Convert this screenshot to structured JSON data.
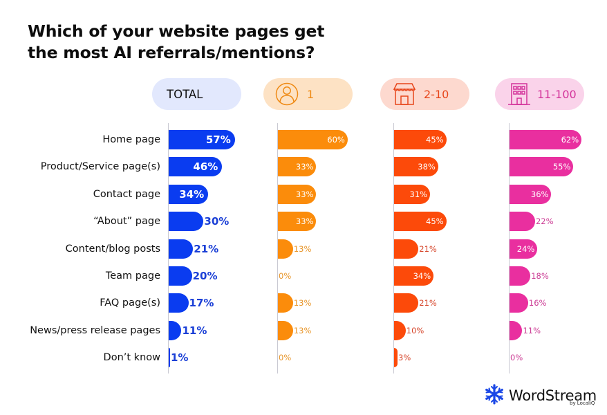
{
  "title": "Which of your website pages get the most AI referrals/mentions?",
  "title_lines": [
    "Which of your website pages get",
    "the most AI referrals/mentions?"
  ],
  "columns": [
    {
      "label": "TOTAL",
      "icon": "none",
      "color": "#0a3cf0",
      "pill_bg": "#e2e8fd",
      "label_color": "#111111"
    },
    {
      "label": "1",
      "icon": "person-icon",
      "color": "#fb8c0b",
      "pill_bg": "#fde2c4",
      "label_color": "#ef8a14"
    },
    {
      "label": "2-10",
      "icon": "storefront-icon",
      "color": "#fc4a0a",
      "pill_bg": "#fdd9cf",
      "label_color": "#e7451a"
    },
    {
      "label": "11-100",
      "icon": "office-building-icon",
      "color": "#e92f9f",
      "pill_bg": "#fad3ea",
      "label_color": "#d3329a"
    }
  ],
  "chart_data": {
    "type": "bar",
    "orientation": "horizontal",
    "title": "Which of your website pages get the most AI referrals/mentions?",
    "xlabel": "",
    "ylabel": "",
    "value_format": "percent",
    "grid": false,
    "legend": "column header pills (TOTAL, 1, 2-10, 11-100)",
    "categories": [
      "Home page",
      "Product/Service page(s)",
      "Contact page",
      "“About” page",
      "Content/blog posts",
      "Team page",
      "FAQ page(s)",
      "News/press release pages",
      "Don’t know"
    ],
    "series": [
      {
        "name": "TOTAL",
        "values": [
          57,
          46,
          34,
          30,
          21,
          20,
          17,
          11,
          1
        ]
      },
      {
        "name": "1",
        "values": [
          60,
          33,
          33,
          33,
          13,
          0,
          13,
          13,
          0
        ]
      },
      {
        "name": "2-10",
        "values": [
          45,
          38,
          31,
          45,
          21,
          34,
          21,
          10,
          3
        ]
      },
      {
        "name": "11-100",
        "values": [
          62,
          55,
          36,
          22,
          24,
          18,
          16,
          11,
          0
        ]
      }
    ]
  },
  "logo": {
    "name": "WordStream",
    "sub": "by LocaliQ",
    "color": "#1a47e6"
  }
}
